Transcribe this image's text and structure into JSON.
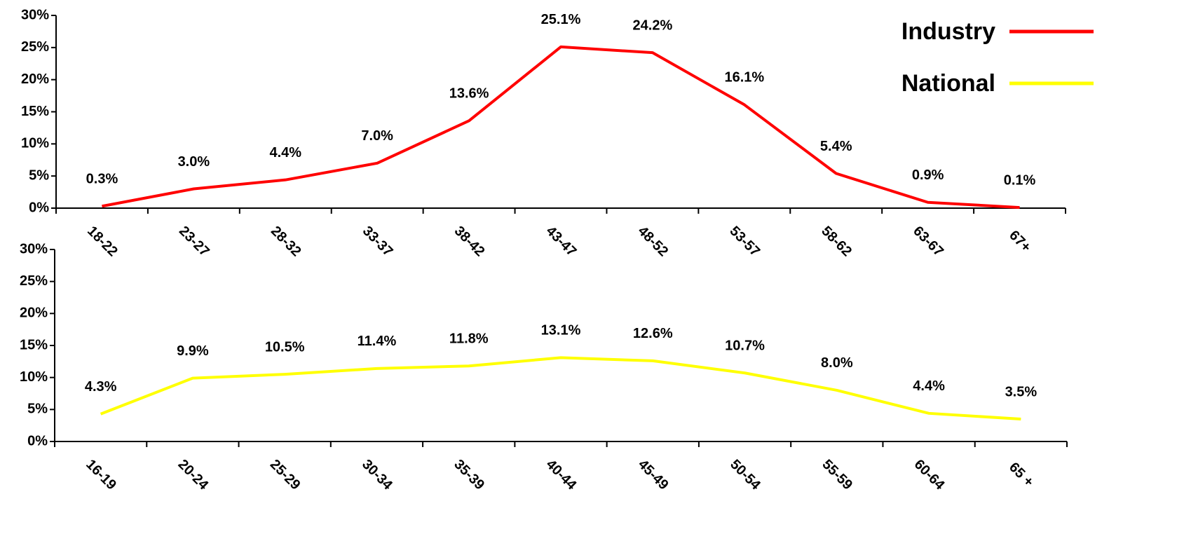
{
  "chart_data": [
    {
      "type": "line",
      "categories": [
        "18-22",
        "23-27",
        "28-32",
        "33-37",
        "38-42",
        "43-47",
        "48-52",
        "53-57",
        "58-62",
        "63-67",
        "67+"
      ],
      "series": [
        {
          "name": "Industry",
          "color": "#ff0000",
          "values": [
            0.3,
            3.0,
            4.4,
            7.0,
            13.6,
            25.1,
            24.2,
            16.1,
            5.4,
            0.9,
            0.1
          ],
          "value_labels": [
            "0.3%",
            "3.0%",
            "4.4%",
            "7.0%",
            "13.6%",
            "25.1%",
            "24.2%",
            "16.1%",
            "5.4%",
            "0.9%",
            "0.1%"
          ]
        }
      ],
      "ylim": [
        0,
        30
      ],
      "yticks": [
        {
          "value": 0,
          "label": "0%"
        },
        {
          "value": 5,
          "label": "5%"
        },
        {
          "value": 10,
          "label": "10%"
        },
        {
          "value": 15,
          "label": "15%"
        },
        {
          "value": 20,
          "label": "20%"
        },
        {
          "value": 25,
          "label": "25%"
        },
        {
          "value": 30,
          "label": "30%"
        }
      ]
    },
    {
      "type": "line",
      "categories": [
        "16-19",
        "20-24",
        "25-29",
        "30-34",
        "35-39",
        "40-44",
        "45-49",
        "50-54",
        "55-59",
        "60-64",
        "65 +"
      ],
      "series": [
        {
          "name": "National",
          "color": "#ffff00",
          "values": [
            4.3,
            9.9,
            10.5,
            11.4,
            11.8,
            13.1,
            12.6,
            10.7,
            8.0,
            4.4,
            3.5
          ],
          "value_labels": [
            "4.3%",
            "9.9%",
            "10.5%",
            "11.4%",
            "11.8%",
            "13.1%",
            "12.6%",
            "10.7%",
            "8.0%",
            "4.4%",
            "3.5%"
          ]
        }
      ],
      "ylim": [
        0,
        30
      ],
      "yticks": [
        {
          "value": 0,
          "label": "0%"
        },
        {
          "value": 5,
          "label": "5%"
        },
        {
          "value": 10,
          "label": "10%"
        },
        {
          "value": 15,
          "label": "15%"
        },
        {
          "value": 20,
          "label": "20%"
        },
        {
          "value": 25,
          "label": "25%"
        },
        {
          "value": 30,
          "label": "30%"
        }
      ]
    }
  ]
}
